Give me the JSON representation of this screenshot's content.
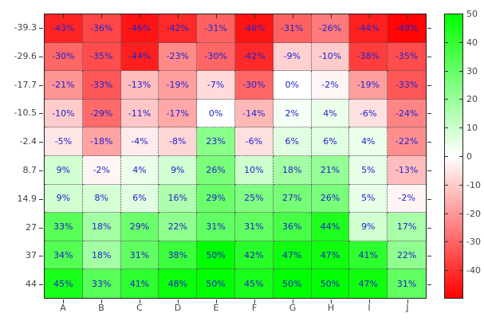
{
  "chart_data": {
    "type": "heatmap",
    "title": "",
    "xlabel": "",
    "ylabel": "",
    "columns": [
      "A",
      "B",
      "C",
      "D",
      "E",
      "F",
      "G",
      "H",
      "I",
      "J"
    ],
    "rows": [
      "-39.3",
      "-29.6",
      "-17.7",
      "-10.5",
      "-2.4",
      "8.7",
      "14.9",
      "27",
      "37",
      "44"
    ],
    "values": [
      [
        -43,
        -36,
        -46,
        -42,
        -31,
        -46,
        -31,
        -26,
        -44,
        -49
      ],
      [
        -30,
        -35,
        -44,
        -23,
        -30,
        -42,
        -9,
        -10,
        -38,
        -35
      ],
      [
        -21,
        -33,
        -13,
        -19,
        -7,
        -30,
        0,
        -2,
        -19,
        -33
      ],
      [
        -10,
        -29,
        -11,
        -17,
        0,
        -14,
        2,
        4,
        -6,
        -24
      ],
      [
        -5,
        -18,
        -4,
        -8,
        23,
        -6,
        6,
        6,
        4,
        -22
      ],
      [
        9,
        -2,
        4,
        9,
        26,
        10,
        18,
        21,
        5,
        -13
      ],
      [
        9,
        8,
        6,
        16,
        29,
        25,
        27,
        26,
        5,
        -2
      ],
      [
        33,
        18,
        29,
        22,
        31,
        31,
        36,
        44,
        9,
        17
      ],
      [
        34,
        18,
        31,
        38,
        50,
        42,
        47,
        47,
        41,
        22
      ],
      [
        45,
        33,
        41,
        48,
        50,
        45,
        50,
        50,
        47,
        31
      ]
    ],
    "cell_value_suffix": "%",
    "grid": true,
    "legend_position": "none",
    "colorbar": {
      "min": -50,
      "max": 50,
      "ticks": [
        50,
        40,
        30,
        20,
        10,
        0,
        -10,
        -20,
        -30,
        -40
      ],
      "max_color": "#00ff00",
      "mid_color": "#ffffff",
      "min_color": "#ff0000"
    },
    "colors": {
      "cell_text": "#2222cc",
      "axis_label": "#444444",
      "frame": "#222222",
      "grid_dots": "#555555"
    }
  }
}
